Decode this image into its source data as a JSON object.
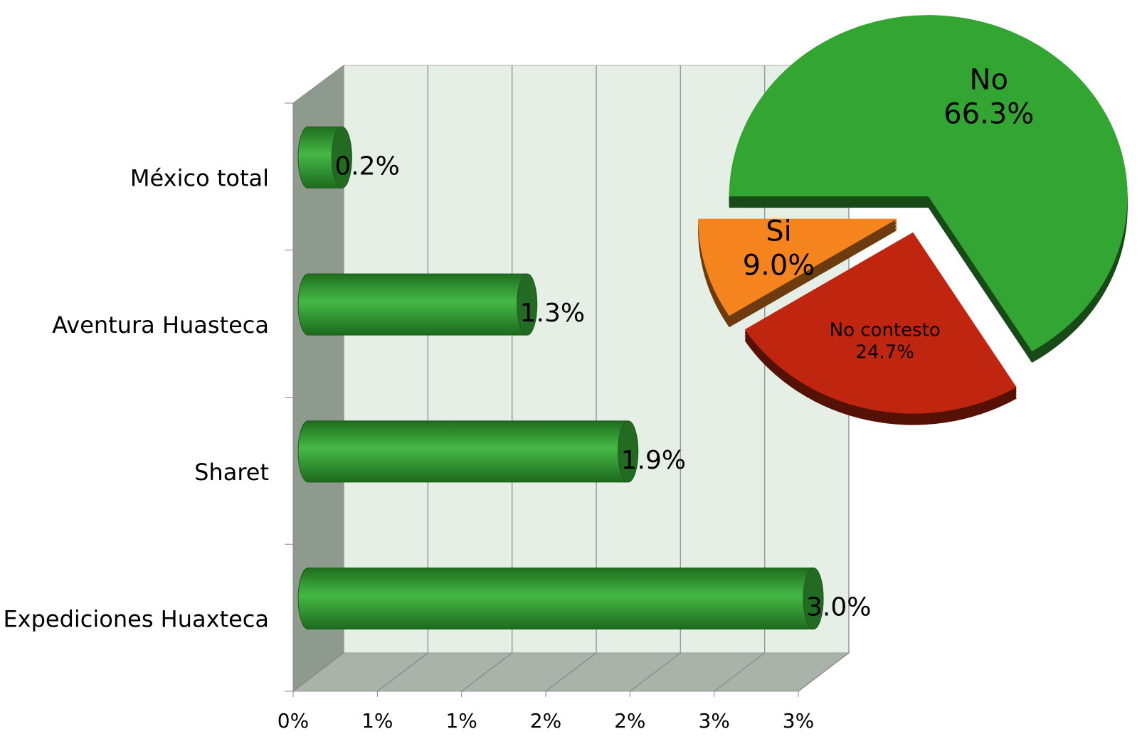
{
  "chart_data": [
    {
      "type": "bar",
      "orientation": "horizontal",
      "categories": [
        "México total",
        "Aventura Huasteca",
        "Sharet",
        "Expediciones Huaxteca"
      ],
      "values": [
        0.2,
        1.3,
        1.9,
        3.0
      ],
      "value_labels": [
        "0.2%",
        "1.3%",
        "1.9%",
        "3.0%"
      ],
      "color": "#3aa53a",
      "xlim": [
        0,
        3
      ],
      "xticks": [
        {
          "value": 0,
          "label": "0%"
        },
        {
          "value": 0.5,
          "label": "1%"
        },
        {
          "value": 1,
          "label": "1%"
        },
        {
          "value": 1.5,
          "label": "2%"
        },
        {
          "value": 2,
          "label": "2%"
        },
        {
          "value": 2.5,
          "label": "3%"
        },
        {
          "value": 3,
          "label": "3%"
        }
      ],
      "grid": true
    },
    {
      "type": "pie",
      "categories": [
        "No",
        "No contesto",
        "Si"
      ],
      "values": [
        66.3,
        24.7,
        9.0
      ],
      "value_labels": [
        "66.3%",
        "24.7%",
        "9.0%"
      ],
      "colors": [
        "#33a532",
        "#c0260f",
        "#f5841f"
      ]
    }
  ]
}
